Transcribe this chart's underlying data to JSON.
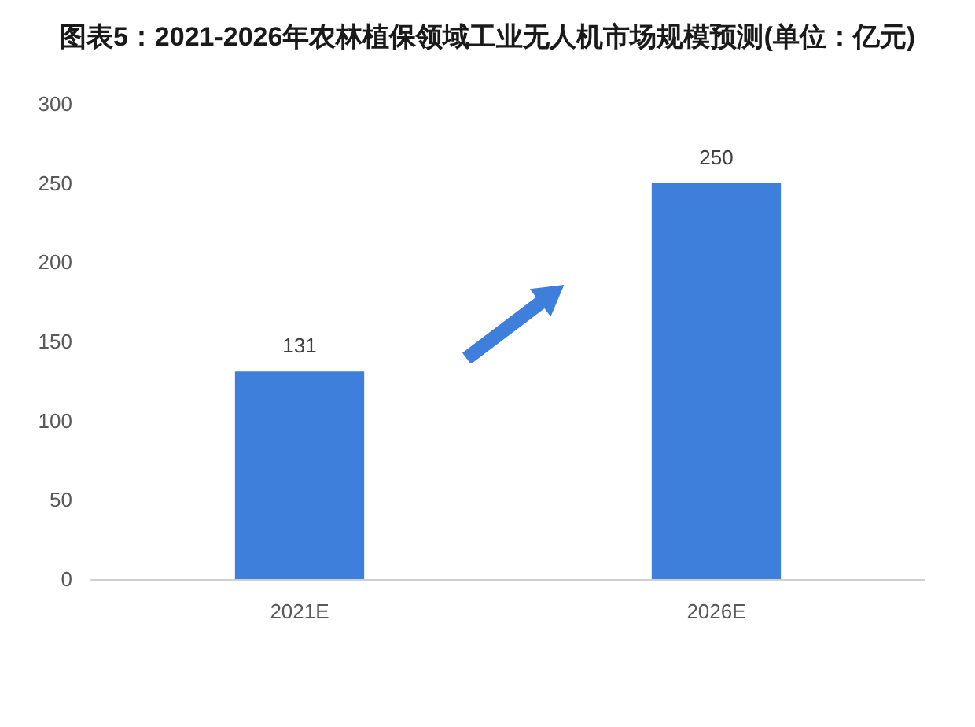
{
  "chart_data": {
    "type": "bar",
    "title": "图表5：2021-2026年农林植保领域工业无人机市场规模预测(单位：亿元)",
    "categories": [
      "2021E",
      "2026E"
    ],
    "values": [
      131,
      250
    ],
    "color": "#3e7fdb",
    "ylim": [
      0,
      300
    ],
    "yticks": [
      0,
      50,
      100,
      150,
      200,
      250,
      300
    ],
    "data_labels": true,
    "grid": false
  }
}
